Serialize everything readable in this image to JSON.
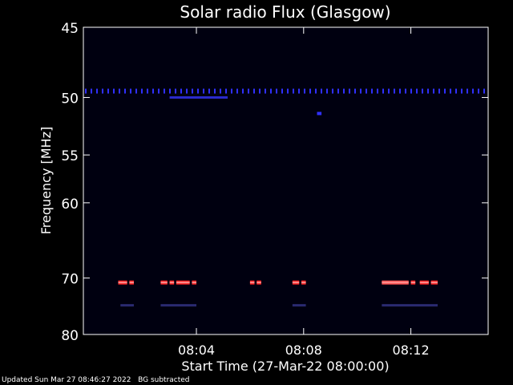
{
  "chart_data": {
    "type": "heatmap",
    "title": "Solar radio Flux (Glasgow)",
    "xlabel": "Start Time (27-Mar-22 08:00:00)",
    "ylabel": "Frequency [MHz]",
    "xlim": [
      "07:59:47",
      "08:14:53"
    ],
    "ylim": [
      80,
      45
    ],
    "x_ticks": [
      "08:04",
      "08:08",
      "08:12"
    ],
    "y_ticks": [
      45,
      50,
      55,
      60,
      70,
      80
    ],
    "colormap": [
      "#000010",
      "#10104a",
      "#1a1aa0",
      "#ff2020",
      "#ff9090"
    ],
    "features": [
      {
        "kind": "dashed-line",
        "freq_mhz": 49.5,
        "start": "07:59:47",
        "end": "08:14:53",
        "intensity": "medium",
        "color": "#3030ff"
      },
      {
        "kind": "segment",
        "freq_mhz": 50.0,
        "start": "08:03:00",
        "end": "08:05:10",
        "intensity": "medium",
        "color": "#2a2acc"
      },
      {
        "kind": "dot",
        "freq_mhz": 51.3,
        "start": "08:08:30",
        "end": "08:08:40",
        "intensity": "low",
        "color": "#3030ff"
      },
      {
        "kind": "segment",
        "freq_mhz": 70.7,
        "start": "08:01:05",
        "end": "08:01:25",
        "intensity": "high",
        "color": "#ff2020"
      },
      {
        "kind": "segment",
        "freq_mhz": 70.7,
        "start": "08:01:30",
        "end": "08:01:40",
        "intensity": "high",
        "color": "#ff2020"
      },
      {
        "kind": "segment",
        "freq_mhz": 70.7,
        "start": "08:02:40",
        "end": "08:02:55",
        "intensity": "high",
        "color": "#ff2020"
      },
      {
        "kind": "segment",
        "freq_mhz": 70.7,
        "start": "08:03:00",
        "end": "08:03:10",
        "intensity": "high",
        "color": "#ff2020"
      },
      {
        "kind": "segment",
        "freq_mhz": 70.7,
        "start": "08:03:15",
        "end": "08:03:45",
        "intensity": "high",
        "color": "#ff2020"
      },
      {
        "kind": "segment",
        "freq_mhz": 70.7,
        "start": "08:03:50",
        "end": "08:04:00",
        "intensity": "high",
        "color": "#ff2020"
      },
      {
        "kind": "segment",
        "freq_mhz": 70.7,
        "start": "08:06:00",
        "end": "08:06:10",
        "intensity": "high",
        "color": "#ff2020"
      },
      {
        "kind": "segment",
        "freq_mhz": 70.7,
        "start": "08:06:15",
        "end": "08:06:25",
        "intensity": "high",
        "color": "#ff2020"
      },
      {
        "kind": "segment",
        "freq_mhz": 70.7,
        "start": "08:07:35",
        "end": "08:07:50",
        "intensity": "high",
        "color": "#ff2020"
      },
      {
        "kind": "segment",
        "freq_mhz": 70.7,
        "start": "08:07:55",
        "end": "08:08:05",
        "intensity": "high",
        "color": "#ff2020"
      },
      {
        "kind": "segment",
        "freq_mhz": 70.7,
        "start": "08:10:55",
        "end": "08:11:55",
        "intensity": "very high",
        "color": "#ff5050"
      },
      {
        "kind": "segment",
        "freq_mhz": 70.7,
        "start": "08:12:00",
        "end": "08:12:10",
        "intensity": "high",
        "color": "#ff2020"
      },
      {
        "kind": "segment",
        "freq_mhz": 70.7,
        "start": "08:12:20",
        "end": "08:12:40",
        "intensity": "high",
        "color": "#ff2020"
      },
      {
        "kind": "segment",
        "freq_mhz": 70.7,
        "start": "08:12:45",
        "end": "08:13:00",
        "intensity": "high",
        "color": "#ff2020"
      },
      {
        "kind": "segment",
        "freq_mhz": 74.5,
        "start": "08:01:10",
        "end": "08:01:40",
        "intensity": "low",
        "color": "#2a2a70"
      },
      {
        "kind": "segment",
        "freq_mhz": 74.5,
        "start": "08:02:40",
        "end": "08:04:00",
        "intensity": "low",
        "color": "#2a2a70"
      },
      {
        "kind": "segment",
        "freq_mhz": 74.5,
        "start": "08:07:35",
        "end": "08:08:05",
        "intensity": "low",
        "color": "#2a2a70"
      },
      {
        "kind": "segment",
        "freq_mhz": 74.5,
        "start": "08:10:55",
        "end": "08:13:00",
        "intensity": "low",
        "color": "#2a2a70"
      }
    ]
  },
  "footer": {
    "updated": "Updated Sun Mar 27 08:46:27 2022",
    "bg_note": "BG subtracted"
  }
}
